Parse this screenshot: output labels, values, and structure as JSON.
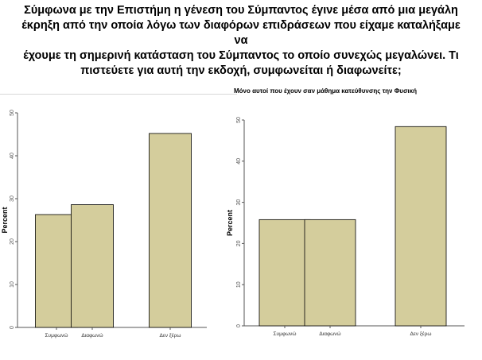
{
  "heading": {
    "line1": "Σύμφωνα με την Επιστήμη  η γένεση του Σύμπαντος έγινε μέσα από μια μεγάλη",
    "line2": "έκρηξη από την οποία λόγω των διαφόρων επιδράσεων που είχαμε καταλήξαμε να",
    "line3": "έχουμε τη σημερινή κατάσταση του Σύμπαντος το οποίο συνεχώς μεγαλώνει. Τι",
    "line4": "πιστεύετε για αυτή την εκδοχή, συμφωνείται ή διαφωνείτε;"
  },
  "colors": {
    "bar_fill": "#d4cd9c",
    "bar_stroke": "#000000",
    "axis": "#555555"
  },
  "chart_data": [
    {
      "type": "bar",
      "title": "",
      "xlabel": "",
      "ylabel": "Percent",
      "categories": [
        "Συμφωνώ",
        "Διαφωνώ",
        "Δεν ξέρω"
      ],
      "values": [
        26.3,
        28.6,
        45.2
      ],
      "ylim": [
        0,
        50
      ],
      "yticks": [
        "0",
        "10",
        "20",
        "30",
        "40",
        "50"
      ],
      "grid": false
    },
    {
      "type": "bar",
      "title": "Μόνο αυτοί που έχουν σαν μάθημα κατεύθυνσης την Φυσική",
      "xlabel": "",
      "ylabel": "Percent",
      "categories": [
        "Συμφωνώ",
        "Διαφωνώ",
        "Δεν ξέρω"
      ],
      "values": [
        25.8,
        25.8,
        48.4
      ],
      "ylim": [
        0,
        50
      ],
      "yticks": [
        "0",
        "10",
        "20",
        "30",
        "40",
        "50"
      ],
      "grid": false
    }
  ]
}
